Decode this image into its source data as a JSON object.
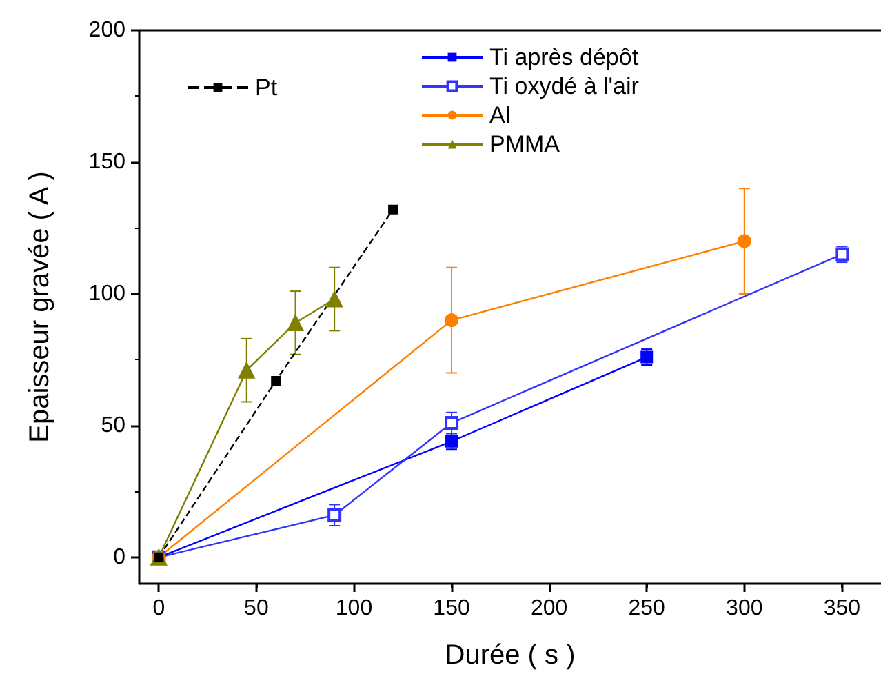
{
  "chart_data": {
    "type": "line",
    "xlabel": "Durée ( s )",
    "ylabel": "Epaisseur gravée ( A )",
    "xlim": [
      -10,
      370
    ],
    "xticks": [
      0,
      50,
      100,
      150,
      200,
      250,
      300,
      350
    ],
    "ylim": [
      -10,
      200
    ],
    "yticks": [
      0,
      50,
      100,
      150,
      200
    ],
    "grid": false,
    "legend": "top",
    "series": [
      {
        "name": "Ti après dépôt",
        "color": "#0000ff",
        "marker": "square",
        "x": [
          0,
          150,
          250
        ],
        "values": [
          0,
          44,
          76
        ],
        "errors": [
          null,
          3,
          3
        ]
      },
      {
        "name": "Ti oxydé à l'air",
        "color": "#3333ff",
        "marker": "square-open",
        "x": [
          0,
          90,
          150,
          350
        ],
        "values": [
          0,
          16,
          51,
          115
        ],
        "errors": [
          null,
          4,
          4,
          3
        ]
      },
      {
        "name": "Al",
        "color": "#ff8000",
        "marker": "circle",
        "x": [
          0,
          150,
          300
        ],
        "values": [
          0,
          90,
          120
        ],
        "errors": [
          null,
          20,
          20
        ]
      },
      {
        "name": "PMMA",
        "color": "#808000",
        "marker": "triangle",
        "x": [
          0,
          45,
          70,
          90
        ],
        "values": [
          0,
          71,
          89,
          98
        ],
        "errors": [
          null,
          12,
          12,
          12
        ]
      },
      {
        "name": "Pt",
        "color": "#000000",
        "marker": "square",
        "line_style": "dashed",
        "x": [
          0,
          60,
          120
        ],
        "values": [
          0,
          67,
          132
        ]
      }
    ]
  }
}
